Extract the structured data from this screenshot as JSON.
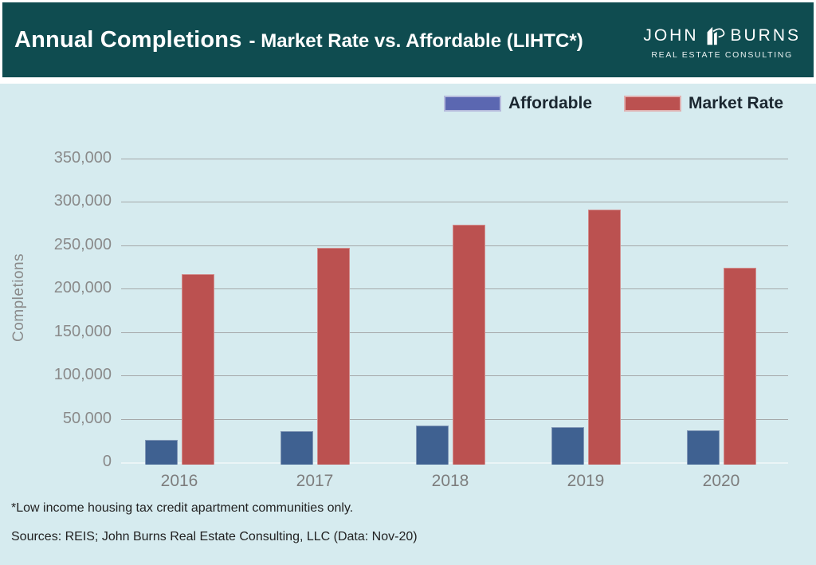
{
  "header": {
    "title_main": "Annual Completions",
    "title_sub": "- Market Rate vs. Affordable (LIHTC*)",
    "brand": {
      "name_left": "JOHN",
      "name_right": "BURNS",
      "tagline": "REAL ESTATE CONSULTING",
      "icon": "building-icon"
    }
  },
  "footer": {
    "footnote": "*Low income housing tax credit apartment communities only.",
    "sources": "Sources: REIS; John Burns Real Estate Consulting, LLC (Data: Nov-20)"
  },
  "colors": {
    "header_bg": "#0f4c50",
    "section_bg": "#d6ebef",
    "grid": "#9c9c9c",
    "affordable_bar": "#3f6191",
    "affordable_legend": "#5b67b1",
    "market_rate": "#bb5150",
    "axis_text": "#8a8a8a",
    "legend_text": "#1b2730"
  },
  "chart_data": {
    "type": "bar",
    "title": "Annual Completions - Market Rate vs. Affordable (LIHTC*)",
    "categories": [
      "2016",
      "2017",
      "2018",
      "2019",
      "2020"
    ],
    "series": [
      {
        "name": "Affordable",
        "legend_color": "#5b67b1",
        "bar_color": "#3f6191",
        "values": [
          26000,
          36000,
          42000,
          40000,
          37000
        ]
      },
      {
        "name": "Market Rate",
        "legend_color": "#bb5150",
        "bar_color": "#bb5150",
        "values": [
          217000,
          247000,
          274000,
          291000,
          224000
        ]
      }
    ],
    "xlabel": "",
    "ylabel": "Completions",
    "ylim": [
      0,
      350000
    ],
    "ytick_step": 50000,
    "ytick_labels": [
      "0",
      "50,000",
      "100,000",
      "150,000",
      "200,000",
      "250,000",
      "300,000",
      "350,000"
    ],
    "grid": true,
    "legend_position": "top-right"
  }
}
